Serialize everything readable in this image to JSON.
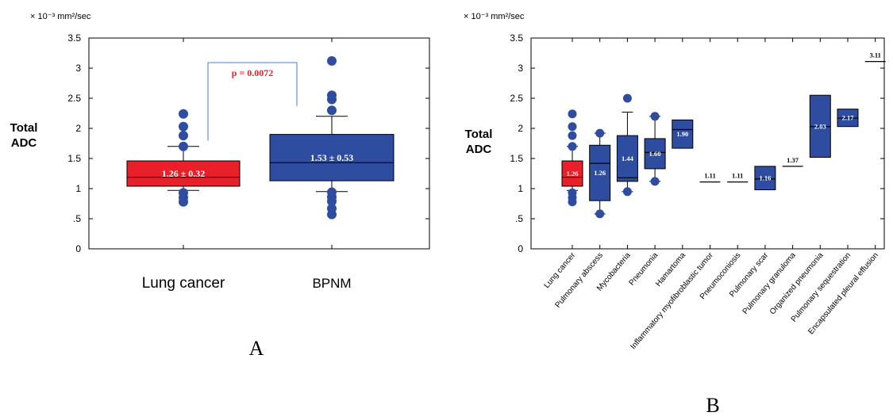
{
  "chart_data": [
    {
      "panel_label": "A",
      "type": "boxplot",
      "unit_label": "× 10⁻³ mm²/sec",
      "ylabel": "Total ADC",
      "ylim": [
        0,
        3.5
      ],
      "yticks": [
        "0",
        ".5",
        "1",
        "1.5",
        "2",
        "2.5",
        "3",
        "3.5"
      ],
      "ytick_values": [
        0,
        0.5,
        1,
        1.5,
        2,
        2.5,
        3,
        3.5
      ],
      "grid": false,
      "categories": [
        "Lung cancer",
        "BPNM"
      ],
      "boxes": [
        {
          "category": "Lung cancer",
          "color": "#e8202a",
          "whisker_low": 0.97,
          "q1": 1.04,
          "median": 1.19,
          "q3": 1.46,
          "whisker_high": 1.7,
          "outliers": [
            0.78,
            0.85,
            0.93,
            1.7,
            1.88,
            2.03,
            2.24
          ],
          "label": "1.26 ± 0.32"
        },
        {
          "category": "BPNM",
          "color": "#2e4da0",
          "whisker_low": 0.95,
          "q1": 1.13,
          "median": 1.43,
          "q3": 1.9,
          "whisker_high": 2.2,
          "outliers": [
            0.57,
            0.67,
            0.79,
            0.86,
            0.94,
            2.3,
            2.48,
            2.55,
            3.12
          ],
          "label": "1.53 ± 0.53"
        }
      ],
      "annotation": "p = 0.0072",
      "annotation_color": "#e8202a"
    },
    {
      "panel_label": "B",
      "type": "boxplot",
      "unit_label": "× 10⁻³ mm²/sec",
      "ylabel": "Total ADC",
      "ylim": [
        0,
        3.5
      ],
      "yticks": [
        "0",
        ".5",
        "1",
        "1.5",
        "2",
        "2.5",
        "3",
        "3.5"
      ],
      "ytick_values": [
        0,
        0.5,
        1,
        1.5,
        2,
        2.5,
        3,
        3.5
      ],
      "grid": false,
      "categories": [
        "Lung cancer",
        "Pulmonary abscess",
        "Mycobacteria",
        "Pneumonia",
        "Hamartoma",
        "Inflammatory myofibroblastic tumor",
        "Pneumoconiosis",
        "Pulmonary scar",
        "Pulmonary granuloma",
        "Organized pneumonia",
        "Pulmonary sequestration",
        "Encapsulated pleural effusion"
      ],
      "boxes": [
        {
          "category": "Lung cancer",
          "color": "#e8202a",
          "label": "1.26",
          "whisker_low": 0.97,
          "q1": 1.04,
          "median": 1.19,
          "q3": 1.46,
          "whisker_high": 1.7,
          "outliers": [
            0.78,
            0.85,
            0.93,
            1.7,
            1.88,
            2.03,
            2.24
          ]
        },
        {
          "category": "Pulmonary abscess",
          "color": "#2e4da0",
          "label": "1.26",
          "whisker_low": 0.58,
          "q1": 0.8,
          "median": 1.42,
          "q3": 1.72,
          "whisker_high": 1.92,
          "outliers": [
            0.58,
            1.92
          ]
        },
        {
          "category": "Mycobacteria",
          "color": "#2e4da0",
          "label": "1.44",
          "whisker_low": 0.95,
          "q1": 1.12,
          "median": 1.18,
          "q3": 1.88,
          "whisker_high": 2.27,
          "outliers": [
            0.95,
            2.5
          ]
        },
        {
          "category": "Pneumonia",
          "color": "#2e4da0",
          "label": "1.60",
          "whisker_low": 1.12,
          "q1": 1.33,
          "median": 1.6,
          "q3": 1.83,
          "whisker_high": 2.2,
          "outliers": [
            1.12,
            2.2
          ]
        },
        {
          "category": "Hamartoma",
          "color": "#2e4da0",
          "label": "1.90",
          "whisker_low": null,
          "q1": 1.67,
          "median": 1.98,
          "q3": 2.14,
          "whisker_high": null,
          "outliers": []
        },
        {
          "category": "Inflammatory myofibroblastic tumor",
          "color": "#000000",
          "label": "1.11",
          "whisker_low": null,
          "q1": null,
          "median": 1.11,
          "q3": null,
          "whisker_high": null,
          "outliers": []
        },
        {
          "category": "Pneumoconiosis",
          "color": "#000000",
          "label": "1.11",
          "whisker_low": null,
          "q1": null,
          "median": 1.11,
          "q3": null,
          "whisker_high": null,
          "outliers": []
        },
        {
          "category": "Pulmonary scar",
          "color": "#2e4da0",
          "label": "1.16",
          "whisker_low": null,
          "q1": 0.98,
          "median": 1.16,
          "q3": 1.37,
          "whisker_high": null,
          "outliers": []
        },
        {
          "category": "Pulmonary granuloma",
          "color": "#000000",
          "label": "1.37",
          "whisker_low": null,
          "q1": null,
          "median": 1.37,
          "q3": null,
          "whisker_high": null,
          "outliers": []
        },
        {
          "category": "Organized pneumonia",
          "color": "#2e4da0",
          "label": "2.03",
          "whisker_low": null,
          "q1": 1.52,
          "median": 2.03,
          "q3": 2.55,
          "whisker_high": null,
          "outliers": []
        },
        {
          "category": "Pulmonary sequestration",
          "color": "#2e4da0",
          "label": "2.17",
          "whisker_low": null,
          "q1": 2.03,
          "median": 2.17,
          "q3": 2.32,
          "whisker_high": null,
          "outliers": []
        },
        {
          "category": "Encapsulated pleural effusion",
          "color": "#000000",
          "label": "3.11",
          "whisker_low": null,
          "q1": null,
          "median": 3.11,
          "q3": null,
          "whisker_high": null,
          "outliers": []
        }
      ]
    }
  ]
}
